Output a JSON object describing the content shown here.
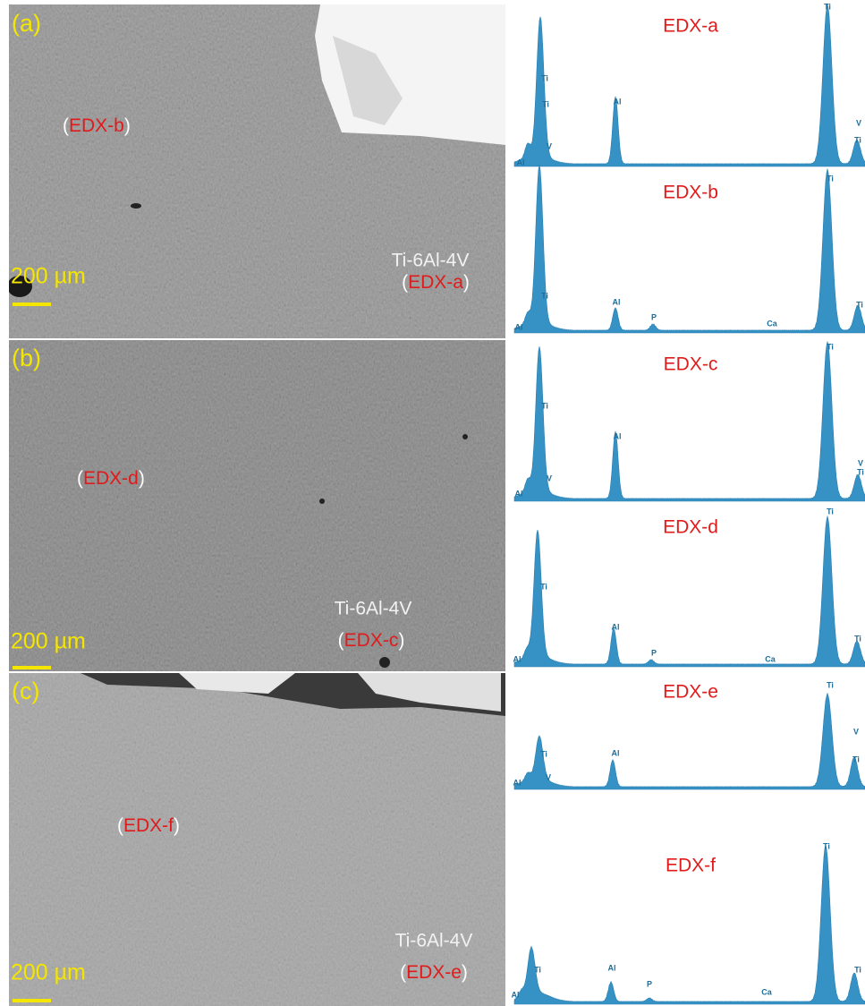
{
  "panels": [
    {
      "label": "(a)",
      "scale_bar": "200 µm",
      "alloy": "Ti-6Al-4V",
      "alloy_tag": {
        "open": "(",
        "name": "EDX-a",
        "close": ")"
      },
      "spot_tag": {
        "open": "(",
        "name": "EDX-b",
        "close": ")"
      }
    },
    {
      "label": "(b)",
      "scale_bar": "200 µm",
      "alloy": "Ti-6Al-4V",
      "alloy_tag": {
        "open": "(",
        "name": "EDX-c",
        "close": ")"
      },
      "spot_tag": {
        "open": "(",
        "name": "EDX-d",
        "close": ")"
      }
    },
    {
      "label": "(c)",
      "scale_bar": "200 µm",
      "alloy": "Ti-6Al-4V",
      "alloy_tag": {
        "open": "(",
        "name": "EDX-e",
        "close": ")"
      },
      "spot_tag": {
        "open": "(",
        "name": "EDX-f",
        "close": ")"
      }
    }
  ],
  "spectra": [
    {
      "title": "EDX-a",
      "peaks": [
        "Al",
        "Ti",
        "Ti",
        "V",
        "Al",
        "Ti",
        "V",
        "Ti"
      ]
    },
    {
      "title": "EDX-b",
      "peaks": [
        "Al",
        "Ti",
        "Al",
        "P",
        "Ca",
        "Ti",
        "Ti"
      ]
    },
    {
      "title": "EDX-c",
      "peaks": [
        "Al",
        "Ti",
        "V",
        "Al",
        "Ti",
        "V",
        "Ti"
      ]
    },
    {
      "title": "EDX-d",
      "peaks": [
        "Al",
        "Ti",
        "Al",
        "P",
        "Ca",
        "Ti",
        "Ti"
      ]
    },
    {
      "title": "EDX-e",
      "peaks": [
        "Al",
        "Ti",
        "V",
        "Al",
        "Ti",
        "V",
        "Ti"
      ]
    },
    {
      "title": "EDX-f",
      "peaks": [
        "Al",
        "Ti",
        "Al",
        "P",
        "Ca",
        "Ti",
        "Ti"
      ]
    }
  ]
}
